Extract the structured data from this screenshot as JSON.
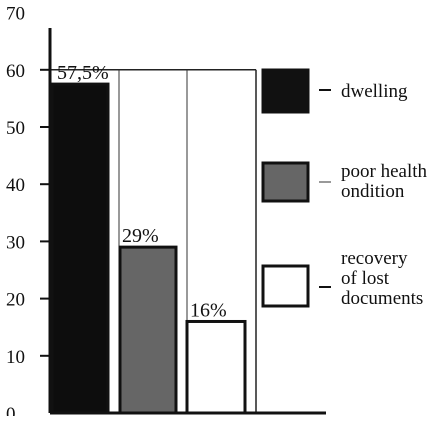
{
  "chart_data": {
    "type": "bar",
    "title": "",
    "xlabel": "",
    "ylabel": "",
    "categories": [
      "dwelling",
      "poor health ondition",
      "recovery of lost documents"
    ],
    "values": [
      57.5,
      29,
      16
    ],
    "data_labels": [
      "57,5%",
      "29%",
      "16%"
    ],
    "ylim": [
      0,
      70
    ],
    "yticks": [
      0,
      10,
      20,
      30,
      40,
      50,
      60,
      70
    ],
    "ytick_labels": [
      "0",
      "10",
      "20",
      "30",
      "40",
      "50",
      "60",
      "70"
    ],
    "grid": true,
    "legend_placement": "right",
    "legend": [
      {
        "lines": [
          "dwelling"
        ],
        "color": "#111111"
      },
      {
        "lines": [
          "poor health",
          "ondition"
        ],
        "color": "#666666"
      },
      {
        "lines": [
          "recovery",
          "of lost",
          "documents"
        ],
        "color": "#ffffff"
      }
    ]
  }
}
